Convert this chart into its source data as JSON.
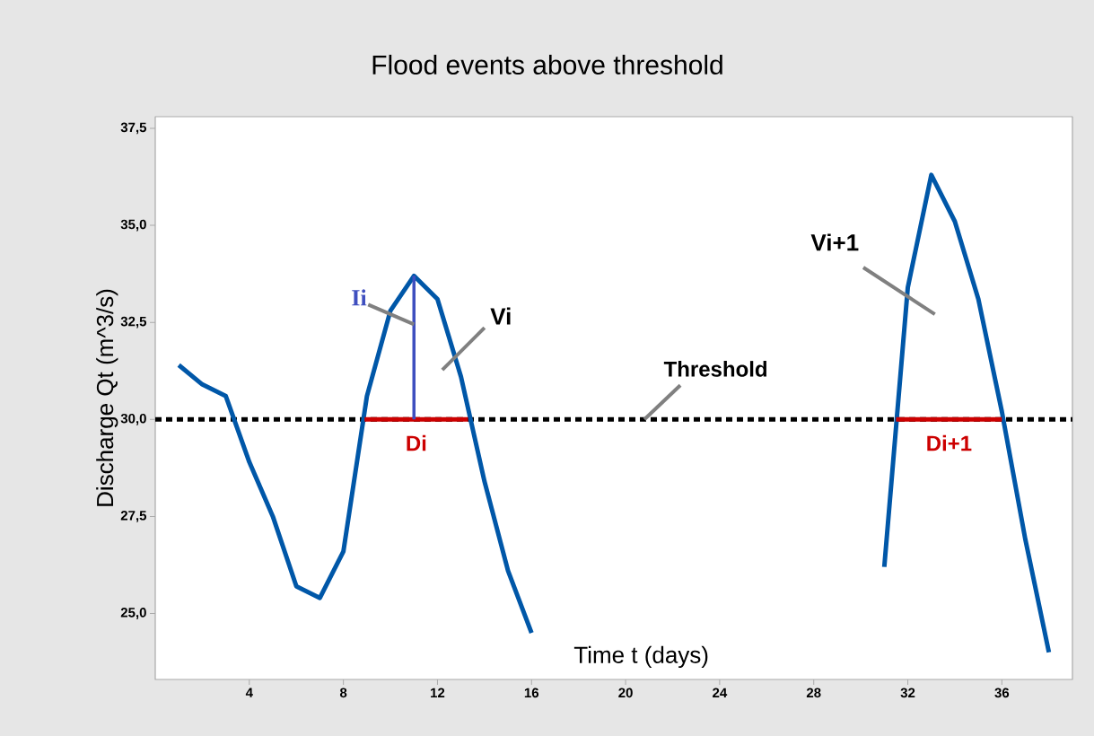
{
  "chart_data": {
    "type": "line",
    "title": "Flood events above threshold",
    "xlabel": "Time t (days)",
    "ylabel": "Discharge Qt (m^3/s)",
    "xlim": [
      0,
      39
    ],
    "ylim": [
      23.3,
      37.8
    ],
    "xticks": [
      4,
      8,
      12,
      16,
      20,
      24,
      28,
      32,
      36
    ],
    "yticks": [
      {
        "value": 25,
        "label": "25,0"
      },
      {
        "value": 27.5,
        "label": "27,5"
      },
      {
        "value": 30,
        "label": "30,0"
      },
      {
        "value": 32.5,
        "label": "32,5"
      },
      {
        "value": 35,
        "label": "35,0"
      },
      {
        "value": 37.5,
        "label": "37,5"
      }
    ],
    "grid": false,
    "marker": "none",
    "series": [
      {
        "color": "#0057a8",
        "x": [
          1,
          2,
          3,
          4,
          5,
          6,
          7,
          8,
          9,
          10,
          11,
          12,
          13,
          14,
          15,
          16
        ],
        "values": [
          31.4,
          30.9,
          30.6,
          28.9,
          27.5,
          25.7,
          25.4,
          26.6,
          30.6,
          32.8,
          33.7,
          33.1,
          31.1,
          28.4,
          26.1,
          24.5
        ]
      },
      {
        "color": "#0057a8",
        "x": [
          31,
          32,
          33,
          34,
          35,
          36,
          37,
          38
        ],
        "values": [
          26.2,
          33.4,
          36.3,
          35.1,
          33.1,
          30.2,
          26.9,
          24.0
        ]
      },
      {
        "name": "Di",
        "color": "#cc0000",
        "x": [
          8.9,
          13.3
        ],
        "values": [
          30.0,
          30.0
        ]
      },
      {
        "name": "Di+1",
        "color": "#cc0000",
        "x": [
          31.5,
          36.0
        ],
        "values": [
          30.0,
          30.0
        ]
      },
      {
        "name": "Ii",
        "color": "#3f4fbf",
        "x": [
          11,
          11
        ],
        "values": [
          30.0,
          33.7
        ]
      }
    ],
    "ref_lines": [
      {
        "axis": "y",
        "value": 30,
        "label": "Threshold",
        "color": "#000000",
        "line_style": "dotted"
      }
    ],
    "annotations": [
      "Vi",
      "Vi+1"
    ]
  }
}
